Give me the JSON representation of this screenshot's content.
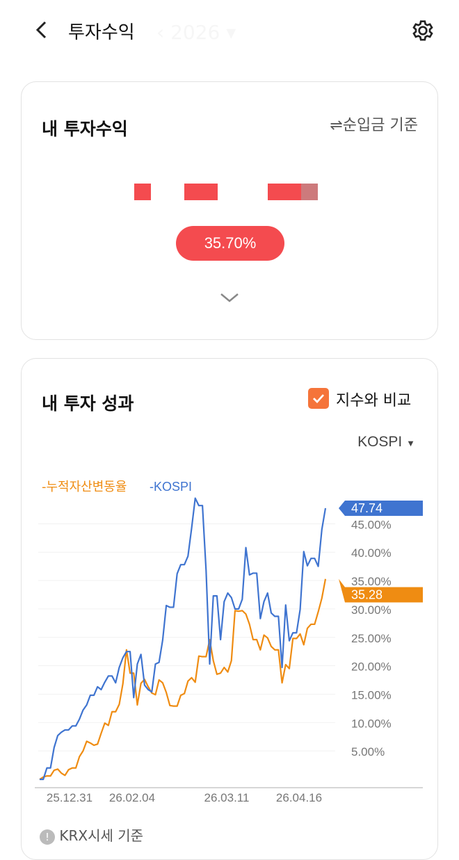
{
  "header": {
    "title": "투자수익",
    "year": "2026",
    "back_icon": "chevron-left-icon",
    "settings_icon": "gear-icon"
  },
  "summary_card": {
    "title": "내 투자수익",
    "basis_label": "⇌순입금 기준",
    "return_badge": "35.70%",
    "badge_color": "#f44b4f",
    "expand_icon": "chevron-down-icon"
  },
  "performance_card": {
    "title": "내 투자 성과",
    "compare_label": "지수와 비교",
    "compare_checked": true,
    "checkbox_color": "#f5743a",
    "index_select": "KOSPI",
    "footnote": "KRX시세 기준"
  },
  "chart_data": {
    "type": "line",
    "legend": [
      "누적자산변동율",
      "KOSPI"
    ],
    "legend_placement": "top-left",
    "y_ticks": [
      "5.00%",
      "10.00%",
      "15.00%",
      "20.00%",
      "25.00%",
      "30.00%",
      "35.00%",
      "40.00%",
      "45.00%"
    ],
    "x_ticks": [
      "25.12.31",
      "26.02.04",
      "26.03.11",
      "26.04.16"
    ],
    "ylim": [
      0,
      50
    ],
    "grid": true,
    "series": [
      {
        "name": "누적자산변동율",
        "color": "#ef8c12",
        "last_label": "35.28",
        "values": [
          0,
          0.4,
          0.6,
          0.6,
          1.6,
          1.8,
          1.1,
          0.7,
          1.7,
          2,
          2,
          4,
          5,
          6.7,
          6.4,
          6,
          6.2,
          8.1,
          9.9,
          9.5,
          11.9,
          11.9,
          13.2,
          16.8,
          22.8,
          18.7,
          18.7,
          13.1,
          16.9,
          17.6,
          16.3,
          15.2,
          14.9,
          17.5,
          17,
          15.3,
          13,
          12.9,
          12.9,
          14.8,
          15.1,
          17.3,
          17.9,
          17.1,
          21.7,
          21.6,
          21.6,
          24.6,
          20.9,
          18.5,
          18.7,
          19.7,
          18.9,
          20.9,
          29.7,
          29.6,
          29.7,
          29.1,
          27.3,
          24.6,
          24.6,
          22.8,
          25.4,
          24.9,
          23.4,
          22.8,
          22.8,
          17,
          20.2,
          19.5,
          24.8,
          24.8,
          25.6,
          23.7,
          26.6,
          27.3,
          27.3,
          29.5,
          31.9,
          35.28
        ]
      },
      {
        "name": "KOSPI",
        "color": "#3f74d0",
        "last_label": "47.74",
        "values": [
          0,
          0,
          2,
          2,
          5.6,
          7.7,
          8.3,
          8.7,
          8.7,
          9.4,
          9.4,
          10.6,
          12.2,
          13.1,
          14.8,
          14.8,
          16.3,
          15.8,
          17.1,
          18.2,
          18.2,
          17,
          19.7,
          21.4,
          22.5,
          22.5,
          14.4,
          20.3,
          22,
          16.6,
          15.8,
          15.4,
          20.3,
          20.6,
          24.5,
          30.6,
          30.3,
          30.3,
          36.2,
          37.8,
          37.8,
          39.3,
          44.2,
          49.5,
          48.2,
          48.2,
          36.8,
          20.3,
          32.3,
          32.3,
          24.6,
          31.3,
          32.8,
          32,
          30,
          30,
          31.7,
          40.8,
          36,
          36.3,
          36.3,
          28.3,
          31.3,
          32.8,
          29.3,
          28.7,
          28.7,
          19.7,
          30.7,
          24.4,
          25.8,
          25.8,
          29.9,
          40.1,
          37.6,
          38.9,
          38.9,
          37.5,
          44,
          47.74
        ]
      }
    ]
  }
}
